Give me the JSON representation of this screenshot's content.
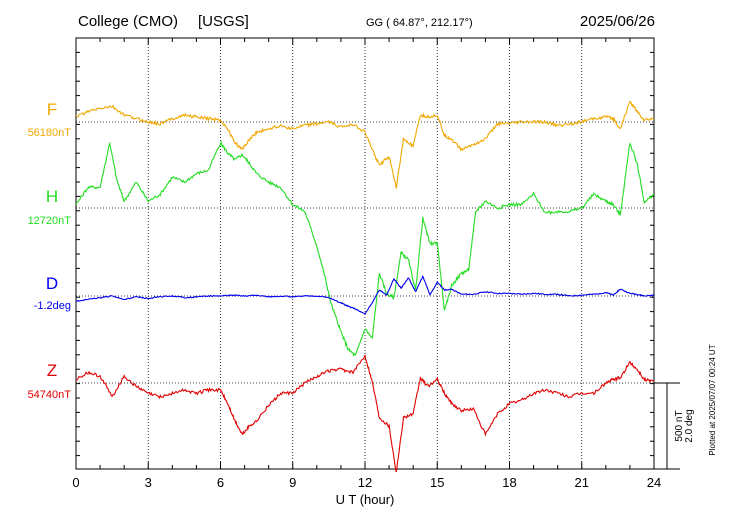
{
  "header": {
    "station": "College (CMO)",
    "source": "[USGS]",
    "coords": "GG ( 64.87°, 212.17°)",
    "date": "2025/06/26"
  },
  "footer": {
    "plotted": "Plotted at 2025/07/07 00:24 UT"
  },
  "scale_bar": {
    "nt_label": "500 nT",
    "deg_label": "2.0 deg"
  },
  "colors": {
    "F": "#f0a800",
    "H": "#22dd22",
    "D": "#0000ee",
    "Z": "#e00000",
    "axis": "#000000"
  },
  "chart_data": {
    "type": "line",
    "xlabel": "U T (hour)",
    "xlim": [
      0,
      24
    ],
    "xticks": [
      "0",
      "3",
      "6",
      "9",
      "12",
      "15",
      "18",
      "21",
      "24"
    ],
    "grid": true,
    "series": [
      {
        "name": "F",
        "baseline_label": "56180nT",
        "baseline": 56180,
        "unit": "nT",
        "x": [
          0,
          0.5,
          1,
          1.5,
          2,
          2.5,
          3,
          3.5,
          4,
          4.5,
          5,
          5.5,
          6,
          6.3,
          6.6,
          6.9,
          7.2,
          7.5,
          8,
          8.5,
          9,
          9.5,
          10,
          10.5,
          11,
          11.5,
          12,
          12.3,
          12.6,
          13,
          13.3,
          13.6,
          14,
          14.3,
          14.6,
          15,
          15.3,
          15.6,
          16,
          16.5,
          17,
          17.5,
          18,
          18.5,
          19,
          19.5,
          20,
          20.5,
          21,
          21.5,
          22,
          22.3,
          22.6,
          23,
          23.3,
          23.6,
          24
        ],
        "values": [
          30,
          60,
          80,
          90,
          40,
          20,
          0,
          -10,
          20,
          40,
          30,
          20,
          10,
          -40,
          -120,
          -160,
          -100,
          -60,
          -40,
          -20,
          -40,
          -20,
          -10,
          0,
          -30,
          -10,
          -60,
          -160,
          -250,
          -200,
          -380,
          -100,
          -140,
          40,
          30,
          40,
          -80,
          -100,
          -160,
          -130,
          -100,
          -10,
          -10,
          0,
          0,
          0,
          -20,
          -10,
          0,
          20,
          30,
          20,
          -40,
          120,
          60,
          10,
          20
        ]
      },
      {
        "name": "H",
        "baseline_label": "12720nT",
        "baseline": 12720,
        "unit": "nT",
        "x": [
          0,
          0.5,
          1,
          1.4,
          1.7,
          2,
          2.5,
          3,
          3.5,
          4,
          4.5,
          5,
          5.5,
          6,
          6.3,
          6.6,
          6.9,
          7.2,
          7.5,
          8,
          8.5,
          9,
          9.5,
          10,
          10.3,
          10.6,
          11,
          11.3,
          11.6,
          12,
          12.3,
          12.6,
          12.9,
          13.2,
          13.5,
          13.8,
          14.1,
          14.4,
          14.7,
          15,
          15.3,
          15.6,
          16,
          16.3,
          16.6,
          17,
          17.5,
          18,
          18.5,
          19,
          19.5,
          20,
          20.5,
          21,
          21.5,
          22,
          22.3,
          22.6,
          23,
          23.3,
          23.6,
          24
        ],
        "values": [
          20,
          120,
          120,
          380,
          160,
          40,
          150,
          40,
          80,
          180,
          150,
          200,
          220,
          380,
          320,
          280,
          310,
          260,
          200,
          150,
          120,
          20,
          -20,
          -220,
          -380,
          -560,
          -720,
          -820,
          -860,
          -700,
          -760,
          -380,
          -500,
          -520,
          -260,
          -300,
          -480,
          -60,
          -210,
          -200,
          -600,
          -450,
          -380,
          -360,
          -20,
          40,
          0,
          20,
          20,
          80,
          -30,
          -20,
          -20,
          0,
          80,
          40,
          20,
          -40,
          380,
          260,
          30,
          80
        ]
      },
      {
        "name": "D",
        "baseline_label": "-1.2deg",
        "baseline": -1.2,
        "unit": "deg",
        "x": [
          0,
          0.5,
          1,
          1.5,
          2,
          2.5,
          3,
          3.5,
          4,
          4.5,
          5,
          5.5,
          6,
          6.5,
          7,
          7.5,
          8,
          8.5,
          9,
          9.5,
          10,
          10.5,
          11,
          11.3,
          11.6,
          12,
          12.3,
          12.6,
          12.9,
          13.2,
          13.5,
          13.8,
          14.1,
          14.4,
          14.7,
          15,
          15.3,
          15.6,
          16,
          16.5,
          17,
          17.5,
          18,
          18.5,
          19,
          19.5,
          20,
          20.5,
          21,
          21.5,
          22,
          22.3,
          22.6,
          23,
          23.3,
          23.6,
          24
        ],
        "values": [
          -0.12,
          -0.08,
          -0.04,
          0.0,
          -0.08,
          -0.02,
          -0.06,
          -0.02,
          0.0,
          -0.04,
          -0.02,
          0.0,
          0.0,
          0.02,
          0.0,
          0.02,
          -0.02,
          0.0,
          -0.02,
          0.0,
          0.0,
          -0.04,
          -0.16,
          -0.24,
          -0.3,
          -0.42,
          -0.16,
          0.14,
          0.02,
          0.4,
          0.18,
          0.42,
          0.1,
          0.46,
          0.02,
          0.32,
          0.14,
          0.16,
          0.04,
          0.04,
          0.1,
          0.06,
          0.06,
          0.04,
          0.06,
          0.04,
          0.04,
          0.0,
          0.02,
          0.04,
          0.08,
          0.02,
          0.16,
          0.06,
          0.04,
          0.0,
          0.02
        ]
      },
      {
        "name": "Z",
        "baseline_label": "54740nT",
        "baseline": 54740,
        "unit": "nT",
        "x": [
          0,
          0.5,
          1,
          1.5,
          2,
          2.5,
          3,
          3.5,
          4,
          4.5,
          5,
          5.5,
          6,
          6.3,
          6.6,
          6.9,
          7.2,
          7.5,
          8,
          8.5,
          9,
          9.5,
          10,
          10.5,
          11,
          11.5,
          12,
          12.3,
          12.6,
          13,
          13.3,
          13.6,
          14,
          14.3,
          14.6,
          15,
          15.3,
          15.6,
          16,
          16.5,
          17,
          17.5,
          18,
          18.5,
          19,
          19.5,
          20,
          20.5,
          21,
          21.5,
          22,
          22.3,
          22.6,
          23,
          23.3,
          23.6,
          24
        ],
        "values": [
          20,
          60,
          40,
          -80,
          40,
          -20,
          -60,
          -80,
          -60,
          -40,
          -60,
          -40,
          -40,
          -120,
          -220,
          -300,
          -250,
          -220,
          -130,
          -60,
          -60,
          0,
          40,
          70,
          80,
          60,
          160,
          10,
          -200,
          -250,
          -520,
          -200,
          -180,
          30,
          -20,
          20,
          -60,
          -120,
          -160,
          -150,
          -300,
          -180,
          -120,
          -100,
          -60,
          -40,
          -60,
          -80,
          -60,
          -60,
          0,
          20,
          30,
          120,
          80,
          20,
          10
        ]
      }
    ]
  }
}
